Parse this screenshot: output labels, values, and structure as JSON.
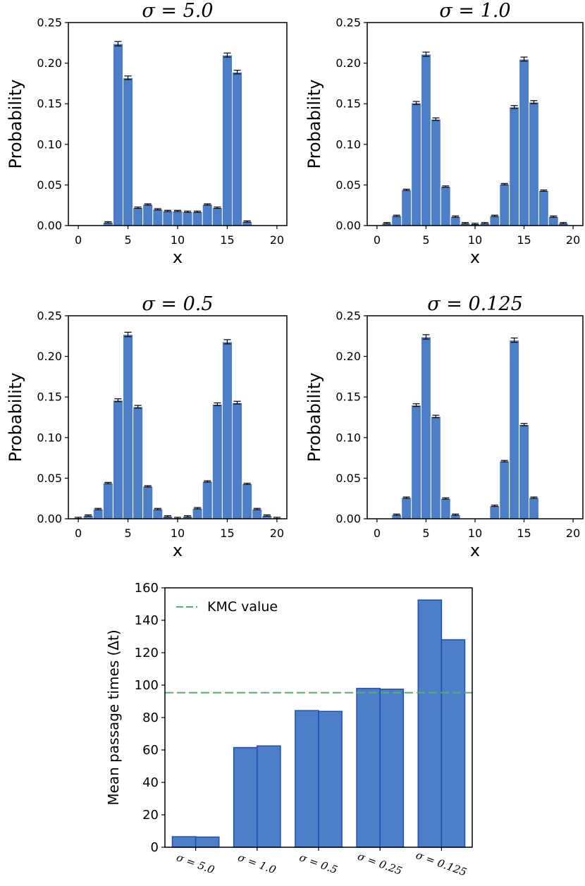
{
  "chart_data": [
    {
      "type": "bar",
      "title": "σ = 5.0",
      "xlabel": "x",
      "ylabel": "Probability",
      "xlim": [
        -1,
        21
      ],
      "ylim": [
        0,
        0.25
      ],
      "xticks": [
        0,
        5,
        10,
        15,
        20
      ],
      "yticks": [
        0.0,
        0.05,
        0.1,
        0.15,
        0.2,
        0.25
      ],
      "ytick_labels": [
        "0.00",
        "0.05",
        "0.10",
        "0.15",
        "0.20",
        "0.25"
      ],
      "x": [
        0,
        1,
        2,
        3,
        4,
        5,
        6,
        7,
        8,
        9,
        10,
        11,
        12,
        13,
        14,
        15,
        16,
        17,
        18,
        19,
        20
      ],
      "values": [
        0,
        0,
        0,
        0.004,
        0.224,
        0.182,
        0.022,
        0.026,
        0.02,
        0.018,
        0.018,
        0.017,
        0.017,
        0.026,
        0.022,
        0.21,
        0.189,
        0.005,
        0,
        0,
        0
      ],
      "error_bars": true
    },
    {
      "type": "bar",
      "title": "σ = 1.0",
      "xlabel": "x",
      "ylabel": "Probability",
      "xlim": [
        -1,
        21
      ],
      "ylim": [
        0,
        0.25
      ],
      "xticks": [
        0,
        5,
        10,
        15,
        20
      ],
      "yticks": [
        0.0,
        0.05,
        0.1,
        0.15,
        0.2,
        0.25
      ],
      "ytick_labels": [
        "0.00",
        "0.05",
        "0.10",
        "0.15",
        "0.20",
        "0.25"
      ],
      "x": [
        0,
        1,
        2,
        3,
        4,
        5,
        6,
        7,
        8,
        9,
        10,
        11,
        12,
        13,
        14,
        15,
        16,
        17,
        18,
        19,
        20
      ],
      "values": [
        0,
        0.003,
        0.012,
        0.044,
        0.151,
        0.211,
        0.131,
        0.048,
        0.011,
        0.003,
        0.002,
        0.003,
        0.012,
        0.051,
        0.146,
        0.205,
        0.152,
        0.043,
        0.011,
        0.003,
        0
      ],
      "error_bars": true
    },
    {
      "type": "bar",
      "title": "σ = 0.5",
      "xlabel": "x",
      "ylabel": "Probability",
      "xlim": [
        -1,
        21
      ],
      "ylim": [
        0,
        0.25
      ],
      "xticks": [
        0,
        5,
        10,
        15,
        20
      ],
      "yticks": [
        0.0,
        0.05,
        0.1,
        0.15,
        0.2,
        0.25
      ],
      "ytick_labels": [
        "0.00",
        "0.05",
        "0.10",
        "0.15",
        "0.20",
        "0.25"
      ],
      "x": [
        0,
        1,
        2,
        3,
        4,
        5,
        6,
        7,
        8,
        9,
        10,
        11,
        12,
        13,
        14,
        15,
        16,
        17,
        18,
        19,
        20
      ],
      "values": [
        0.001,
        0.004,
        0.012,
        0.044,
        0.146,
        0.227,
        0.138,
        0.04,
        0.012,
        0.003,
        0.001,
        0.003,
        0.013,
        0.046,
        0.141,
        0.218,
        0.143,
        0.043,
        0.012,
        0.004,
        0.001
      ],
      "error_bars": true
    },
    {
      "type": "bar",
      "title": "σ = 0.125",
      "xlabel": "x",
      "ylabel": "Probability",
      "xlim": [
        -1,
        21
      ],
      "ylim": [
        0,
        0.25
      ],
      "xticks": [
        0,
        5,
        10,
        15,
        20
      ],
      "yticks": [
        0.0,
        0.05,
        0.1,
        0.15,
        0.2,
        0.25
      ],
      "ytick_labels": [
        "0.00",
        "0.05",
        "0.10",
        "0.15",
        "0.20",
        "0.25"
      ],
      "x": [
        0,
        1,
        2,
        3,
        4,
        5,
        6,
        7,
        8,
        9,
        10,
        11,
        12,
        13,
        14,
        15,
        16,
        17,
        18,
        19,
        20
      ],
      "values": [
        0,
        0,
        0.005,
        0.026,
        0.14,
        0.224,
        0.126,
        0.025,
        0.005,
        0,
        0,
        0,
        0.016,
        0.071,
        0.22,
        0.116,
        0.026,
        0,
        0,
        0,
        0
      ],
      "error_bars": true
    },
    {
      "type": "bar",
      "title": "",
      "xlabel": "",
      "ylabel": "Mean passage times (Δt)",
      "ylim": [
        0,
        160
      ],
      "yticks": [
        0,
        20,
        40,
        60,
        80,
        100,
        120,
        140,
        160
      ],
      "categories": [
        "σ = 5.0",
        "σ = 1.0",
        "σ = 0.5",
        "σ = 0.25",
        "σ = 0.125"
      ],
      "series": [
        {
          "values": [
            6.5,
            61.5,
            84.3,
            98.0,
            152.5
          ]
        },
        {
          "values": [
            6.3,
            62.5,
            83.8,
            97.5,
            128.0
          ]
        }
      ],
      "reference_line": {
        "label": "KMC value",
        "value": 95.3,
        "style": "dashed",
        "color": "#5aab73"
      },
      "legend": "top-left"
    }
  ],
  "colors": {
    "bar_fill": "#4d7fc9",
    "bar_edge_top": "#ffffff",
    "bar_edge_bottom": "#1f4fb0",
    "error_bar": "#000000",
    "kmc_line": "#5aab73"
  }
}
